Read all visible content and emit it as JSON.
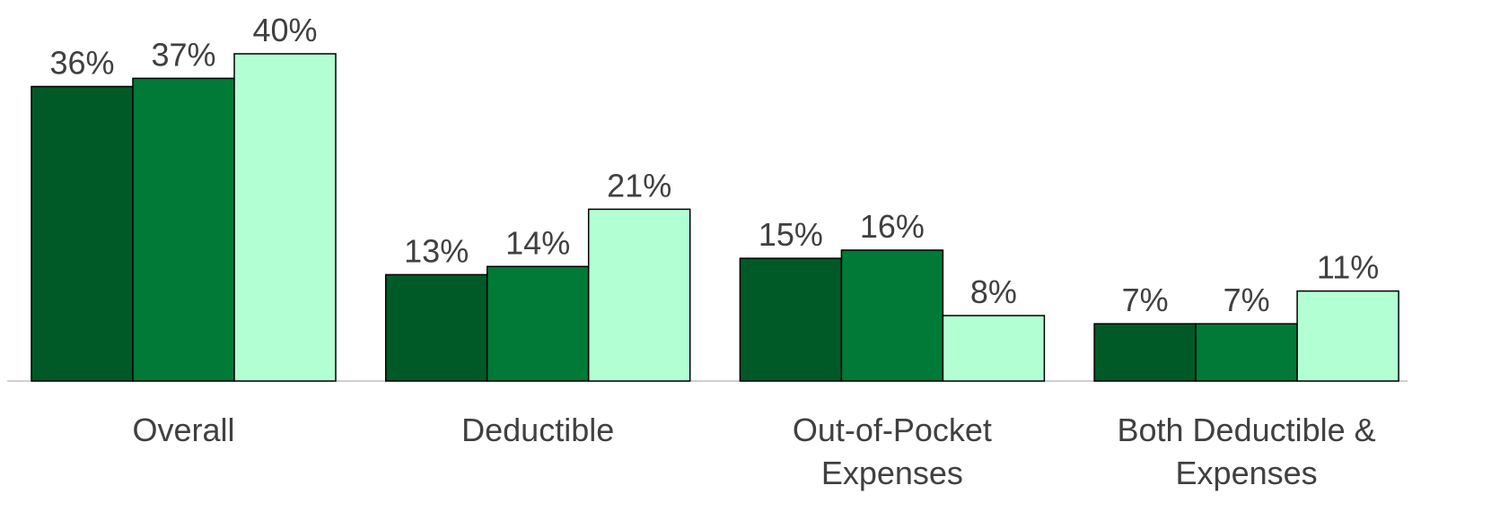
{
  "chart_data": {
    "type": "bar",
    "categories": [
      "Overall",
      "Deductible",
      "Out-of-Pocket Expenses",
      "Both Deductible & Expenses"
    ],
    "series": [
      {
        "color": "#005a27",
        "values": [
          36,
          13,
          15,
          7
        ],
        "value_labels": [
          "36%",
          "13%",
          "15%",
          "7%"
        ]
      },
      {
        "color": "#007a36",
        "values": [
          37,
          14,
          16,
          7
        ],
        "value_labels": [
          "37%",
          "14%",
          "16%",
          "7%"
        ]
      },
      {
        "color": "#b3ffd4",
        "values": [
          40,
          21,
          8,
          11
        ],
        "value_labels": [
          "40%",
          "21%",
          "8%",
          "11%"
        ]
      }
    ],
    "ylim": [
      0,
      40
    ]
  }
}
